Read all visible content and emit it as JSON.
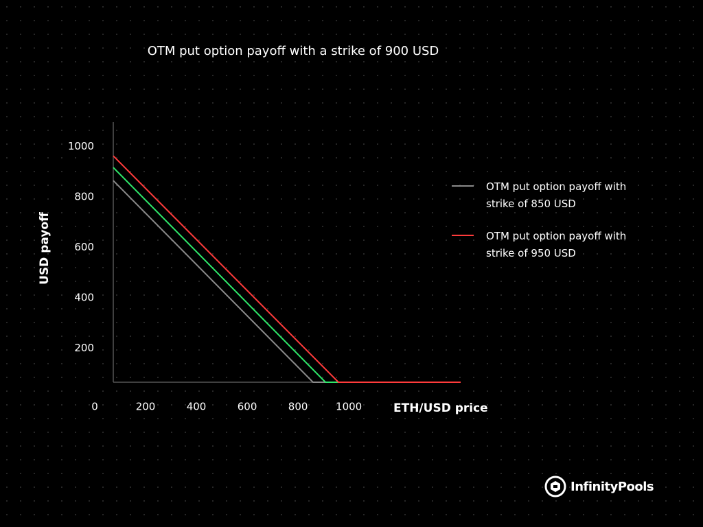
{
  "chart_data": {
    "type": "line",
    "title": "OTM put option payoff with a strike of 900 USD",
    "x_label": "ETH/USD price",
    "y_label": "USD payoff",
    "xlim": [
      73,
      1440
    ],
    "ylim": [
      65,
      1097
    ],
    "xticks": [
      0,
      200,
      400,
      600,
      800,
      1000
    ],
    "yticks": [
      200,
      400,
      600,
      800,
      1000
    ],
    "grid": false,
    "series": [
      {
        "name": "OTM put option payoff with strike of 850 USD",
        "color": "#8a8a8a",
        "x": [
          73,
          859,
          1440
        ],
        "values": [
          865,
          65,
          65
        ]
      },
      {
        "color": "#2ee86a",
        "x": [
          73,
          908,
          1440
        ],
        "values": [
          917,
          65,
          65
        ]
      },
      {
        "name": "OTM put option payoff with strike of 950 USD",
        "color": "#ff3b3b",
        "x": [
          73,
          959,
          1440
        ],
        "values": [
          963,
          65,
          65
        ]
      }
    ]
  },
  "logo": "InfinityPools"
}
